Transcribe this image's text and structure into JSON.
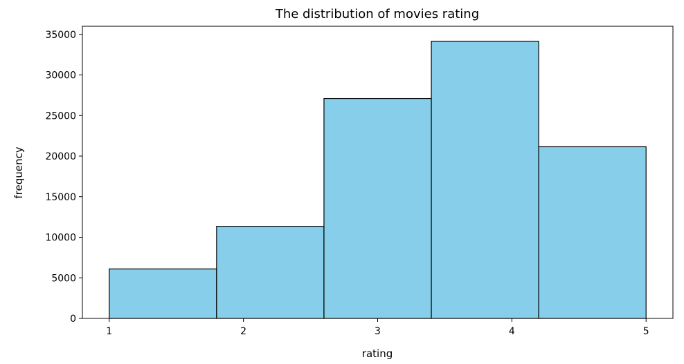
{
  "chart_data": {
    "type": "bar",
    "title": "The distribution of movies rating",
    "xlabel": "rating",
    "ylabel": "frequency",
    "xlim": [
      0.8,
      5.2
    ],
    "ylim": [
      0,
      36000
    ],
    "xticks": [
      1,
      2,
      3,
      4,
      5
    ],
    "yticks": [
      0,
      5000,
      10000,
      15000,
      20000,
      25000,
      30000,
      35000
    ],
    "bins": [
      {
        "start": 1.0,
        "end": 1.8,
        "value": 6100
      },
      {
        "start": 1.8,
        "end": 2.6,
        "value": 11350
      },
      {
        "start": 2.6,
        "end": 3.4,
        "value": 27100
      },
      {
        "start": 3.4,
        "end": 4.2,
        "value": 34150
      },
      {
        "start": 4.2,
        "end": 5.0,
        "value": 21150
      }
    ],
    "grid": false,
    "colors": {
      "bar_fill": "#87ceeb",
      "bar_edge": "#000000"
    }
  }
}
